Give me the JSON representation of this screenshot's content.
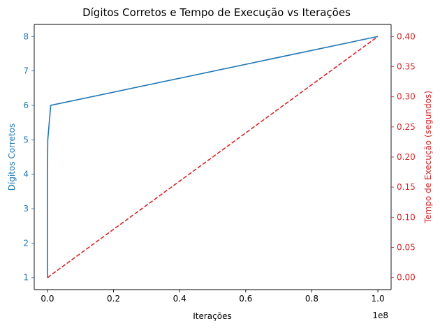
{
  "chart_data": {
    "type": "line",
    "title": "Dígitos Corretos e Tempo de Execução vs Iterações",
    "xlabel": "Iterações",
    "x_multiplier_label": "1e8",
    "x_scale": 100000000,
    "xlim": [
      -4000000,
      104000000
    ],
    "xticks": [
      0,
      20000000,
      40000000,
      60000000,
      80000000,
      100000000
    ],
    "xtick_labels": [
      "0.0",
      "0.2",
      "0.4",
      "0.6",
      "0.8",
      "1.0"
    ],
    "grid": false,
    "y_left": {
      "label": "Dígitos Corretos",
      "color": "#1f77b4",
      "lim": [
        0.65,
        8.35
      ],
      "ticks": [
        1,
        2,
        3,
        4,
        5,
        6,
        7,
        8
      ],
      "tick_labels": [
        "1",
        "2",
        "3",
        "4",
        "5",
        "6",
        "7",
        "8"
      ]
    },
    "y_right": {
      "label": "Tempo de Execução (segundos)",
      "color": "#d62728",
      "lim": [
        -0.02,
        0.42
      ],
      "ticks": [
        0.0,
        0.05,
        0.1,
        0.15,
        0.2,
        0.25,
        0.3,
        0.35,
        0.4
      ],
      "tick_labels": [
        "0.00",
        "0.05",
        "0.10",
        "0.15",
        "0.20",
        "0.25",
        "0.30",
        "0.35",
        "0.40"
      ]
    },
    "series": [
      {
        "axis": "left",
        "color": "#1f77b4",
        "style": "solid",
        "x": [
          10,
          100,
          1000,
          10000,
          100000,
          1000000,
          100000000
        ],
        "y": [
          1,
          1,
          2,
          4,
          5,
          6,
          8
        ]
      },
      {
        "axis": "right",
        "color": "#d62728",
        "style": "dashed",
        "x": [
          10,
          100,
          1000,
          10000,
          100000,
          1000000,
          100000000
        ],
        "y": [
          0.0,
          0.0,
          0.0,
          0.0,
          0.0,
          0.004,
          0.4
        ]
      }
    ]
  }
}
